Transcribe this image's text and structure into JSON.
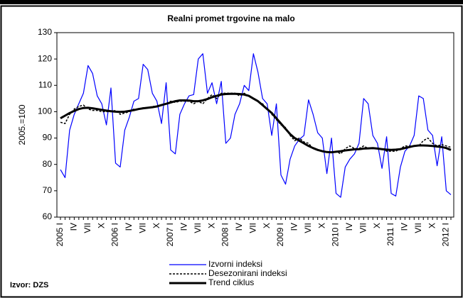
{
  "chart_data": {
    "type": "line",
    "title": "Realni promet trgovine na malo",
    "y_label": "2005.=100",
    "source": "Izvor: DZS",
    "legend": "bottom",
    "grid": false,
    "ylim": [
      60,
      130
    ],
    "yticks": [
      60,
      70,
      80,
      90,
      100,
      110,
      120,
      130
    ],
    "categories": [
      "2005 I",
      null,
      null,
      "IV",
      null,
      null,
      "VII",
      null,
      null,
      "X",
      null,
      null,
      "2006 I",
      null,
      null,
      "IV",
      null,
      null,
      "VII",
      null,
      null,
      "X",
      null,
      null,
      "2007 I",
      null,
      null,
      "IV",
      null,
      null,
      "VII",
      null,
      null,
      "X",
      null,
      null,
      "2008 I",
      null,
      null,
      "IV",
      null,
      null,
      "VII",
      null,
      null,
      "X",
      null,
      null,
      "2009 I",
      null,
      null,
      "IV",
      null,
      null,
      "VII",
      null,
      null,
      "X",
      null,
      null,
      "2010 I",
      null,
      null,
      "IV",
      null,
      null,
      "VII",
      null,
      null,
      "X",
      null,
      null,
      "2011 I",
      null,
      null,
      "IV",
      null,
      null,
      "VII",
      null,
      null,
      "X",
      null,
      null,
      "2012 I",
      null
    ],
    "series": [
      {
        "name": "Izvorni indeksi",
        "color": "#0000ff",
        "style": "solid",
        "width": 1.2,
        "values": [
          78,
          75,
          93,
          99,
          103,
          107,
          117.5,
          114.5,
          106,
          103,
          95,
          109,
          80.5,
          79,
          93,
          98,
          104,
          105,
          118,
          116,
          107,
          104,
          95.5,
          111,
          85.5,
          84,
          99,
          103,
          106,
          106.5,
          120,
          122,
          107,
          111,
          103,
          111.5,
          88,
          90,
          99,
          103,
          110,
          108,
          122,
          115,
          105,
          103,
          91,
          103,
          76,
          72.5,
          82,
          87,
          89.5,
          91,
          104.5,
          99,
          92,
          90,
          76.5,
          90,
          69,
          67.5,
          79,
          82,
          84,
          88,
          105,
          103,
          91,
          88,
          78.5,
          90.5,
          69,
          68,
          79,
          85,
          87,
          91,
          106,
          105,
          93,
          91,
          79.5,
          90.5,
          70,
          68.5
        ]
      },
      {
        "name": "Desezonirani indeksi",
        "color": "#000000",
        "style": "dashed",
        "width": 1.5,
        "values": [
          96,
          95.5,
          99,
          101,
          102,
          102.5,
          101,
          100.5,
          100.5,
          100,
          100,
          100,
          100.5,
          99,
          99.5,
          100,
          101,
          101,
          101.5,
          101.5,
          102,
          102,
          102.5,
          103,
          104,
          103.5,
          104,
          104,
          104,
          103,
          104,
          103,
          105,
          106.5,
          105,
          107,
          107,
          107,
          107,
          106,
          107,
          106,
          105,
          104,
          103,
          101,
          99,
          97,
          95,
          94,
          91,
          89,
          90,
          88.5,
          88,
          86,
          85.5,
          85,
          84.5,
          84.5,
          85,
          84,
          86,
          87,
          86,
          86,
          87,
          86,
          86,
          86,
          86,
          85,
          85,
          85,
          86,
          87,
          87,
          87,
          87,
          89,
          90,
          88,
          87,
          87.5,
          87,
          86.5
        ]
      },
      {
        "name": "Trend ciklus",
        "color": "#000000",
        "style": "solid",
        "width": 3,
        "values": [
          97.5,
          98.5,
          99.5,
          100.3,
          101,
          101.4,
          101.5,
          101.3,
          101,
          100.7,
          100.4,
          100.2,
          100,
          99.9,
          100,
          100.3,
          100.6,
          101,
          101.3,
          101.5,
          101.7,
          102,
          102.5,
          103,
          103.5,
          104,
          104.3,
          104.3,
          104.2,
          104,
          104,
          104.3,
          104.8,
          105.5,
          106,
          106.5,
          106.7,
          106.8,
          106.8,
          106.7,
          106.5,
          106,
          105,
          104,
          102.5,
          101,
          99.5,
          97.5,
          95.5,
          93.5,
          91.5,
          90,
          89,
          88,
          87,
          86.2,
          85.5,
          85,
          84.7,
          84.6,
          84.8,
          85,
          85.3,
          85.5,
          85.7,
          85.8,
          86,
          86.1,
          86.2,
          86,
          85.8,
          85.6,
          85.5,
          85.6,
          85.8,
          86.2,
          86.6,
          87,
          87.2,
          87.2,
          87.1,
          87,
          86.8,
          86.6,
          86.2,
          85.5
        ]
      }
    ]
  }
}
